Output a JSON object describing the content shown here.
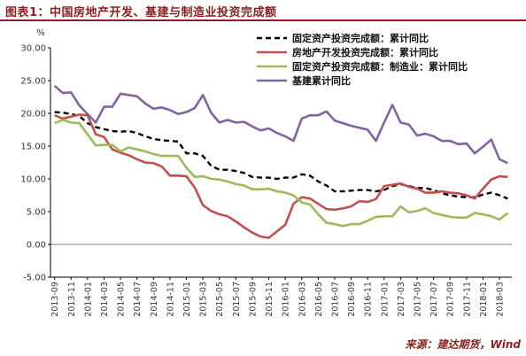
{
  "header": {
    "title": "图表1：中国房地产开发、基建与制造业投资完成额",
    "source": "来源：建达期货，Wind"
  },
  "chart_data": {
    "type": "line",
    "title": "图表1：中国房地产开发、基建与制造业投资完成额",
    "ylabel": "%",
    "xlabel": "",
    "ylim": [
      -5,
      30
    ],
    "yticks": [
      "30.00",
      "25.00",
      "20.00",
      "15.00",
      "10.00",
      "5.00",
      "0.00",
      "-5.00"
    ],
    "grid": false,
    "legend_position": "top-right",
    "x": [
      "2013-09",
      "2013-10",
      "2013-11",
      "2013-12",
      "2014-01",
      "2014-02",
      "2014-03",
      "2014-04",
      "2014-05",
      "2014-06",
      "2014-07",
      "2014-08",
      "2014-09",
      "2014-10",
      "2014-11",
      "2014-12",
      "2015-01",
      "2015-02",
      "2015-03",
      "2015-04",
      "2015-05",
      "2015-06",
      "2015-07",
      "2015-08",
      "2015-09",
      "2015-10",
      "2015-11",
      "2015-12",
      "2016-01",
      "2016-02",
      "2016-03",
      "2016-04",
      "2016-05",
      "2016-06",
      "2016-07",
      "2016-08",
      "2016-09",
      "2016-10",
      "2016-11",
      "2016-12",
      "2017-01",
      "2017-02",
      "2017-03",
      "2017-04",
      "2017-05",
      "2017-06",
      "2017-07",
      "2017-08",
      "2017-09",
      "2017-10",
      "2017-11",
      "2017-12",
      "2018-01",
      "2018-02",
      "2018-03",
      "2018-04"
    ],
    "xtick_labels": [
      "2013-09",
      "2013-11",
      "2014-01",
      "2014-03",
      "2014-05",
      "2014-07",
      "2014-09",
      "2014-11",
      "2015-01",
      "2015-03",
      "2015-05",
      "2015-07",
      "2015-09",
      "2015-11",
      "2016-01",
      "2016-03",
      "2016-05",
      "2016-07",
      "2016-09",
      "2016-11",
      "2017-01",
      "2017-03",
      "2017-05",
      "2017-07",
      "2017-09",
      "2017-11",
      "2018-01",
      "2018-03"
    ],
    "series": [
      {
        "name": "固定资产投资完成额：累计同比",
        "color": "#000000",
        "dash": true,
        "values": [
          20.2,
          20.1,
          19.9,
          19.6,
          18.5,
          17.9,
          17.6,
          17.3,
          17.2,
          17.3,
          17.0,
          16.5,
          16.1,
          15.9,
          15.8,
          15.7,
          13.9,
          13.9,
          13.5,
          12.0,
          11.4,
          11.4,
          11.2,
          10.9,
          10.3,
          10.2,
          10.2,
          10.0,
          10.2,
          10.2,
          10.7,
          10.5,
          9.6,
          9.0,
          8.1,
          8.1,
          8.2,
          8.3,
          8.3,
          8.1,
          8.3,
          8.9,
          9.2,
          8.9,
          8.6,
          8.6,
          8.3,
          7.8,
          7.5,
          7.3,
          7.2,
          7.2,
          7.6,
          7.9,
          7.5,
          7.0
        ]
      },
      {
        "name": "房地产开发投资完成额：累计同比",
        "color": "#c0504d",
        "dash": false,
        "values": [
          19.7,
          19.2,
          19.5,
          19.8,
          19.7,
          16.8,
          16.4,
          14.5,
          14.0,
          13.6,
          13.0,
          12.5,
          12.4,
          11.9,
          10.5,
          10.5,
          10.4,
          8.7,
          6.0,
          5.1,
          4.6,
          4.3,
          3.5,
          2.6,
          1.8,
          1.2,
          1.0,
          2.0,
          3.0,
          6.2,
          7.2,
          7.0,
          6.2,
          5.4,
          5.3,
          5.5,
          5.8,
          6.6,
          6.5,
          6.9,
          8.9,
          9.1,
          9.3,
          8.8,
          8.5,
          7.9,
          7.9,
          8.1,
          7.9,
          7.8,
          7.5,
          7.0,
          8.5,
          9.9,
          10.4,
          10.3
        ]
      },
      {
        "name": "固定资产投资完成额：制造业：累计同比",
        "color": "#9bbb59",
        "dash": false,
        "values": [
          18.5,
          19.0,
          18.6,
          18.5,
          16.8,
          15.1,
          15.2,
          15.2,
          14.2,
          14.8,
          14.5,
          14.2,
          13.8,
          13.5,
          13.5,
          13.5,
          11.7,
          10.3,
          10.4,
          10.0,
          9.9,
          9.6,
          9.2,
          9.0,
          8.4,
          8.4,
          8.5,
          8.1,
          7.9,
          7.5,
          6.4,
          6.1,
          4.6,
          3.3,
          3.1,
          2.8,
          3.1,
          3.1,
          3.6,
          4.2,
          4.3,
          4.3,
          5.8,
          4.9,
          5.1,
          5.5,
          4.8,
          4.5,
          4.2,
          4.1,
          4.1,
          4.8,
          4.6,
          4.3,
          3.8,
          4.8
        ]
      },
      {
        "name": "基建累计同比",
        "color": "#8064a2",
        "dash": false,
        "values": [
          24.2,
          23.1,
          23.2,
          21.2,
          19.9,
          18.6,
          21.0,
          21.0,
          23.0,
          22.8,
          22.6,
          21.5,
          20.7,
          20.9,
          20.5,
          19.9,
          20.2,
          20.8,
          22.8,
          20.1,
          18.6,
          19.0,
          18.6,
          18.7,
          18.0,
          17.4,
          17.7,
          17.0,
          16.5,
          15.8,
          19.2,
          19.7,
          19.7,
          20.3,
          18.9,
          18.5,
          18.1,
          17.8,
          17.5,
          15.8,
          18.6,
          21.3,
          18.6,
          18.3,
          16.6,
          16.9,
          16.5,
          15.8,
          15.8,
          15.3,
          15.4,
          13.9,
          14.9,
          16.0,
          13.0,
          12.4
        ]
      }
    ]
  }
}
